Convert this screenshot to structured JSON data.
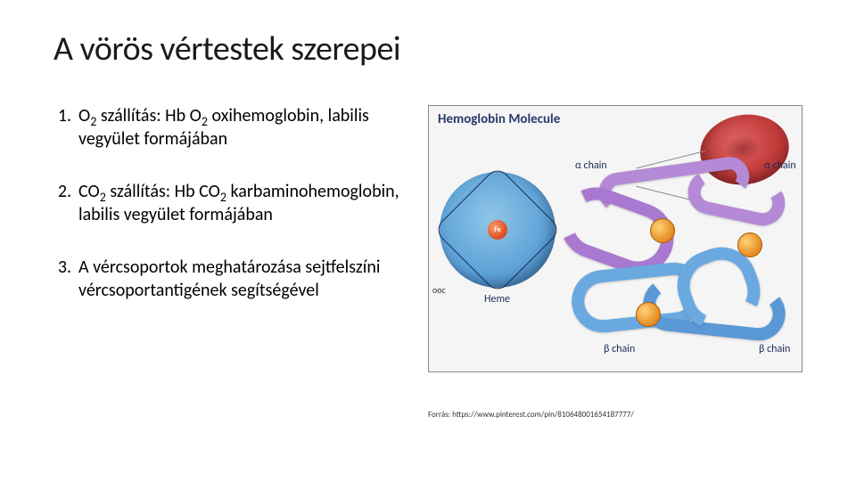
{
  "title": "A vörös vértestek szerepei",
  "items": [
    {
      "num": "1.",
      "pre": "O",
      "sub1": "2",
      "mid": " szállítás: Hb O",
      "sub2": "2",
      "rest": " oxihemoglobin, labilis vegyület formájában"
    },
    {
      "num": "2.",
      "pre": "CO",
      "sub1": "2",
      "mid": " szállítás: Hb CO",
      "sub2": "2",
      "rest": " karbaminohemoglobin, labilis vegyület formájában"
    },
    {
      "num": "3.",
      "pre": "",
      "sub1": "",
      "mid": "",
      "sub2": "",
      "rest": "A vércsoportok meghatározása sejtfelszíni vércsoportantigének segítségével"
    }
  ],
  "figure": {
    "title": "Hemoglobin Molecule",
    "fe": "Fe",
    "heme_label": "Heme",
    "alpha_label_left": "α chain",
    "alpha_label_right": "α chain",
    "beta_label_left": "β chain",
    "beta_label_right": "β chain",
    "ooc": "ooc"
  },
  "caption": "Forrás: https://www.pinterest.com/pin/810648001654187777/"
}
